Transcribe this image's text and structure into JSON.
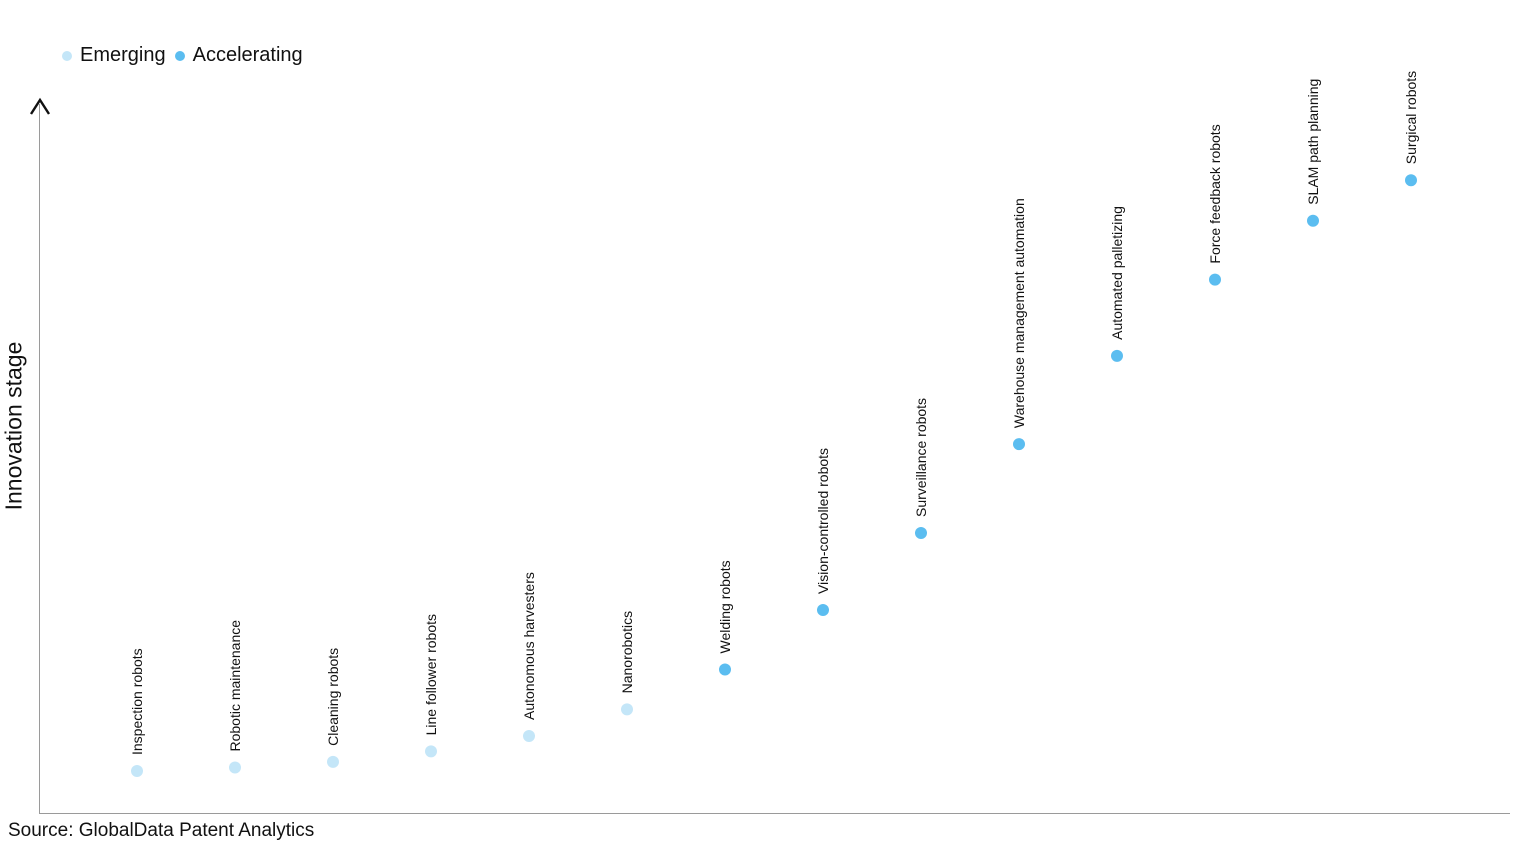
{
  "chart_data": {
    "type": "scatter",
    "ylabel": "Innovation stage",
    "xlabel": "",
    "source": "Source: GlobalData Patent Analytics",
    "legend": {
      "placement": "top-left",
      "entries": [
        {
          "name": "Emerging",
          "color": "#c4e6f8"
        },
        {
          "name": "Accelerating",
          "color": "#5bbdf0"
        }
      ]
    },
    "grid": false,
    "points": [
      {
        "label": "Inspection robots",
        "stage": "Emerging",
        "rank": 1,
        "y": 0.06
      },
      {
        "label": "Robotic maintenance",
        "stage": "Emerging",
        "rank": 2,
        "y": 0.065
      },
      {
        "label": "Cleaning robots",
        "stage": "Emerging",
        "rank": 3,
        "y": 0.073
      },
      {
        "label": "Line follower robots",
        "stage": "Emerging",
        "rank": 4,
        "y": 0.088
      },
      {
        "label": "Autonomous harvesters",
        "stage": "Emerging",
        "rank": 5,
        "y": 0.11
      },
      {
        "label": "Nanorobotics",
        "stage": "Emerging",
        "rank": 6,
        "y": 0.148
      },
      {
        "label": "Welding robots",
        "stage": "Accelerating",
        "rank": 7,
        "y": 0.205
      },
      {
        "label": "Vision-controlled robots",
        "stage": "Accelerating",
        "rank": 8,
        "y": 0.29
      },
      {
        "label": "Surveillance robots",
        "stage": "Accelerating",
        "rank": 9,
        "y": 0.4
      },
      {
        "label": "Warehouse management automation",
        "stage": "Accelerating",
        "rank": 10,
        "y": 0.527
      },
      {
        "label": "Automated palletizing",
        "stage": "Accelerating",
        "rank": 11,
        "y": 0.653
      },
      {
        "label": "Force feedback robots",
        "stage": "Accelerating",
        "rank": 12,
        "y": 0.762
      },
      {
        "label": "SLAM path planning",
        "stage": "Accelerating",
        "rank": 13,
        "y": 0.846
      },
      {
        "label": "Surgical robots",
        "stage": "Accelerating",
        "rank": 14,
        "y": 0.904
      }
    ],
    "ylim": [
      0,
      1
    ],
    "xlim": [
      0,
      15
    ]
  }
}
